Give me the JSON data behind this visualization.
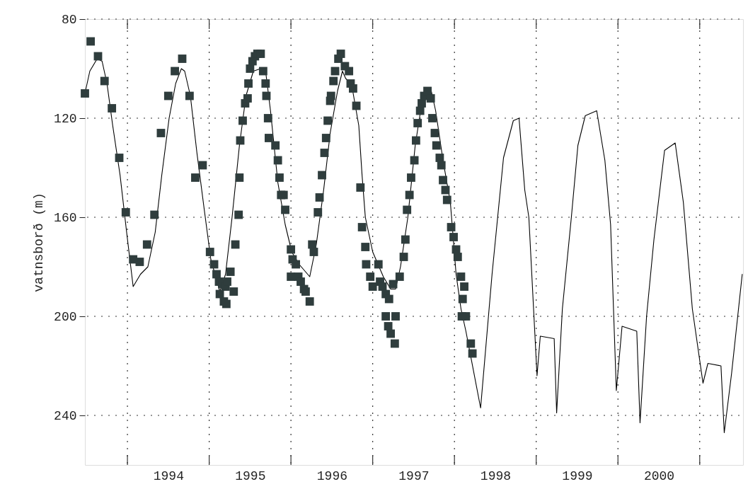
{
  "chart_data": {
    "type": "scatter",
    "ylabel": "vatnsborð (m)",
    "xlim": [
      1993.48,
      2001.53
    ],
    "ylim": [
      260,
      80
    ],
    "xticks": [
      {
        "value": 1994,
        "label": null
      },
      {
        "value": 1994.5,
        "label": "1994"
      },
      {
        "value": 1995,
        "label": null
      },
      {
        "value": 1995.5,
        "label": "1995"
      },
      {
        "value": 1996,
        "label": null
      },
      {
        "value": 1996.5,
        "label": "1996"
      },
      {
        "value": 1997,
        "label": null
      },
      {
        "value": 1997.5,
        "label": "1997"
      },
      {
        "value": 1998,
        "label": null
      },
      {
        "value": 1998.5,
        "label": "1998"
      },
      {
        "value": 1999,
        "label": null
      },
      {
        "value": 1999.5,
        "label": "1999"
      },
      {
        "value": 2000,
        "label": null
      },
      {
        "value": 2000.5,
        "label": "2000"
      },
      {
        "value": 2001,
        "label": null
      }
    ],
    "yticks": [
      80,
      120,
      160,
      200,
      240
    ],
    "grid": true,
    "legend": false,
    "series": [
      {
        "type": "line",
        "color": "#000000",
        "marker": "none",
        "line_style": "solid",
        "x": [
          1993.48,
          1993.54,
          1993.63,
          1993.69,
          1993.75,
          1993.82,
          1993.91,
          1993.99,
          1994.07,
          1994.16,
          1994.25,
          1994.34,
          1994.42,
          1994.51,
          1994.59,
          1994.66,
          1994.7,
          1994.77,
          1994.85,
          1994.94,
          1995.02,
          1995.13,
          1995.2,
          1995.28,
          1995.37,
          1995.45,
          1995.54,
          1995.63,
          1995.69,
          1995.75,
          1995.84,
          1995.93,
          1996.01,
          1996.1,
          1996.23,
          1996.31,
          1996.4,
          1996.48,
          1996.57,
          1996.63,
          1996.67,
          1996.74,
          1996.83,
          1996.87,
          1996.91,
          1997.0,
          1997.13,
          1997.22,
          1997.28,
          1997.34,
          1997.43,
          1997.52,
          1997.6,
          1997.71,
          1997.77,
          1997.86,
          1997.95,
          1998.02,
          1998.08,
          1998.14,
          1998.32,
          1998.46,
          1998.6,
          1998.72,
          1998.79,
          1998.86,
          1998.91,
          1999.01,
          1999.05,
          1999.22,
          1999.25,
          1999.32,
          1999.43,
          1999.51,
          1999.6,
          1999.74,
          1999.84,
          1999.91,
          1999.98,
          2000.05,
          2000.23,
          2000.27,
          2000.35,
          2000.44,
          2000.57,
          2000.7,
          2000.8,
          2000.91,
          2001.04,
          2001.1,
          2001.26,
          2001.3,
          2001.39,
          2001.52
        ],
        "values": [
          110,
          101,
          96,
          97,
          106,
          123,
          143,
          166,
          188,
          183,
          180,
          166,
          143,
          120,
          106,
          100,
          101,
          111,
          134,
          157,
          177,
          190,
          183,
          160,
          131,
          111,
          101,
          100,
          101,
          117,
          146,
          163,
          174,
          179,
          184,
          171,
          149,
          126,
          109,
          101,
          104,
          106,
          123,
          143,
          160,
          174,
          184,
          189,
          189,
          180,
          160,
          131,
          114,
          108,
          117,
          137,
          154,
          183,
          197,
          206,
          237,
          183,
          136,
          121,
          120,
          149,
          160,
          224,
          208,
          209,
          239,
          197,
          160,
          131,
          119,
          117,
          137,
          163,
          230,
          204,
          206,
          243,
          200,
          169,
          133,
          130,
          154,
          197,
          227,
          219,
          220,
          247,
          223,
          183
        ]
      },
      {
        "type": "scatter",
        "color": "#2f3d3d",
        "marker": "square",
        "x": [
          1993.48,
          1993.55,
          1993.64,
          1993.72,
          1993.81,
          1993.9,
          1993.98,
          1994.07,
          1994.15,
          1994.24,
          1994.33,
          1994.41,
          1994.5,
          1994.58,
          1994.67,
          1994.76,
          1994.83,
          1994.92,
          1995.01,
          1995.06,
          1995.09,
          1995.12,
          1995.16,
          1995.2,
          1995.22,
          1995.13,
          1995.18,
          1995.21,
          1995.26,
          1995.3,
          1995.32,
          1995.36,
          1995.37,
          1995.38,
          1995.41,
          1995.44,
          1995.47,
          1995.48,
          1995.5,
          1995.53,
          1995.56,
          1995.59,
          1995.63,
          1995.66,
          1995.69,
          1995.7,
          1995.72,
          1995.73,
          1995.81,
          1995.84,
          1995.86,
          1995.88,
          1995.91,
          1995.93,
          1996.0,
          1996.02,
          1996.06,
          1996.0,
          1996.09,
          1996.12,
          1996.16,
          1996.18,
          1996.23,
          1996.26,
          1996.28,
          1996.33,
          1996.35,
          1996.38,
          1996.41,
          1996.43,
          1996.45,
          1996.48,
          1996.49,
          1996.52,
          1996.54,
          1996.58,
          1996.61,
          1996.66,
          1996.71,
          1996.73,
          1996.76,
          1996.8,
          1996.85,
          1996.87,
          1996.91,
          1996.92,
          1996.97,
          1997.0,
          1997.07,
          1997.09,
          1997.12,
          1997.16,
          1997.2,
          1997.25,
          1997.16,
          1997.19,
          1997.22,
          1997.27,
          1997.28,
          1997.33,
          1997.38,
          1997.4,
          1997.42,
          1997.45,
          1997.47,
          1997.51,
          1997.53,
          1997.55,
          1997.58,
          1997.6,
          1997.63,
          1997.67,
          1997.71,
          1997.73,
          1997.76,
          1997.78,
          1997.82,
          1997.84,
          1997.86,
          1997.89,
          1997.91,
          1997.96,
          1997.99,
          1998.02,
          1998.04,
          1998.08,
          1998.12,
          1998.1,
          1998.09,
          1998.14,
          1998.2,
          1998.22
        ],
        "values": [
          110,
          89,
          95,
          105,
          116,
          136,
          158,
          177,
          178,
          171,
          159,
          126,
          111,
          101,
          96,
          111,
          144,
          139,
          174,
          179,
          183,
          186,
          187,
          188,
          186,
          191,
          194,
          195,
          182,
          190,
          171,
          159,
          144,
          129,
          121,
          114,
          112,
          106,
          100,
          97,
          95,
          94,
          94,
          101,
          106,
          111,
          120,
          128,
          131,
          137,
          144,
          151,
          151,
          157,
          173,
          177,
          179,
          184,
          184,
          186,
          189,
          190,
          194,
          171,
          174,
          158,
          152,
          143,
          134,
          128,
          121,
          113,
          111,
          105,
          101,
          96,
          94,
          99,
          101,
          106,
          108,
          115,
          148,
          164,
          172,
          179,
          184,
          188,
          179,
          186,
          188,
          191,
          193,
          187,
          200,
          204,
          207,
          211,
          200,
          184,
          176,
          169,
          157,
          151,
          144,
          137,
          129,
          122,
          117,
          114,
          111,
          109,
          112,
          120,
          126,
          131,
          136,
          139,
          145,
          149,
          153,
          164,
          168,
          173,
          176,
          184,
          188,
          193,
          200,
          200,
          211,
          215
        ]
      }
    ]
  }
}
